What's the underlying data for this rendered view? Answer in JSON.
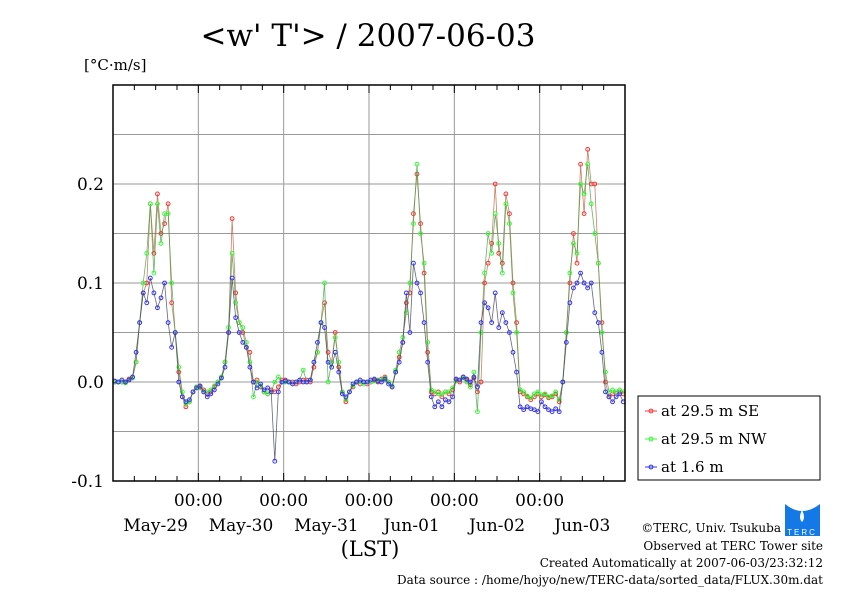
{
  "chart_data": {
    "type": "line",
    "title": "<w' T'> / 2007-06-03",
    "ylabel": "[°C·m/s]",
    "xlabel": "(LST)",
    "ylim": [
      -0.1,
      0.3
    ],
    "xlim_hours": [
      0,
      144
    ],
    "x_unit": "hours since May-29 00:00 LST",
    "yticks": [
      {
        "v": -0.1,
        "label": "-0.1"
      },
      {
        "v": 0.0,
        "label": "0.0"
      },
      {
        "v": 0.1,
        "label": "0.1"
      },
      {
        "v": 0.2,
        "label": "0.2"
      }
    ],
    "ygrid_step": 0.05,
    "xgrid_hours": [
      24,
      48,
      72,
      96,
      120
    ],
    "xtick_minor_hours": 6,
    "time_labels": [
      {
        "h": 24,
        "label": "00:00"
      },
      {
        "h": 48,
        "label": "00:00"
      },
      {
        "h": 72,
        "label": "00:00"
      },
      {
        "h": 96,
        "label": "00:00"
      },
      {
        "h": 120,
        "label": "00:00"
      }
    ],
    "date_labels": [
      {
        "h": 12,
        "label": "May-29"
      },
      {
        "h": 36,
        "label": "May-30"
      },
      {
        "h": 60,
        "label": "May-31"
      },
      {
        "h": 84,
        "label": "Jun-01"
      },
      {
        "h": 108,
        "label": "Jun-02"
      },
      {
        "h": 132,
        "label": "Jun-03"
      }
    ],
    "grid": true,
    "legend_position": "right-bottom",
    "series": [
      {
        "name": "at 29.5 m SE",
        "color": "#ff3030",
        "line": "#c06040",
        "values": [
          0,
          0,
          0,
          0,
          0.003,
          0.005,
          0.02,
          0.06,
          0.09,
          0.1,
          0.18,
          0.13,
          0.19,
          0.15,
          0.16,
          0.18,
          0.08,
          0.05,
          0.01,
          -0.015,
          -0.025,
          -0.02,
          -0.01,
          -0.005,
          -0.005,
          -0.008,
          -0.012,
          -0.01,
          -0.005,
          0,
          0.005,
          0.02,
          0.05,
          0.165,
          0.09,
          0.06,
          0.05,
          0.035,
          0.03,
          0.0,
          0.002,
          -0.005,
          -0.01,
          -0.012,
          -0.008,
          -0.01,
          -0.005,
          0.002,
          0.002,
          0,
          0,
          -0.002,
          0,
          0.002,
          0.002,
          0,
          0.015,
          0.03,
          0.06,
          0.08,
          0.03,
          0.02,
          0.05,
          0.015,
          -0.01,
          -0.02,
          -0.01,
          -0.005,
          0,
          -0.002,
          0,
          -0.002,
          0,
          0.002,
          0,
          0.003,
          0.005,
          0,
          -0.005,
          0.01,
          0.025,
          0.04,
          0.08,
          0.09,
          0.17,
          0.21,
          0.16,
          0.11,
          0.03,
          -0.01,
          -0.012,
          -0.01,
          -0.015,
          -0.01,
          -0.012,
          -0.008,
          0.002,
          0,
          0.005,
          0.002,
          -0.003,
          0.004,
          -0.01,
          0,
          0.1,
          0.12,
          0.14,
          0.2,
          0.13,
          0.12,
          0.19,
          0.17,
          0.1,
          0.06,
          -0.01,
          -0.012,
          -0.015,
          -0.018,
          -0.015,
          -0.012,
          -0.015,
          -0.013,
          -0.016,
          -0.015,
          -0.012,
          -0.02,
          0,
          0.05,
          0.1,
          0.15,
          0.12,
          0.22,
          0.17,
          0.235,
          0.2,
          0.2,
          0.12,
          0.06,
          0,
          -0.015,
          -0.012,
          -0.01,
          -0.01,
          -0.012
        ]
      },
      {
        "name": "at 29.5 m NW",
        "color": "#30ff30",
        "line": "#40a040",
        "values": [
          0,
          0,
          0,
          -0.001,
          0.002,
          0.004,
          0.02,
          0.06,
          0.1,
          0.13,
          0.18,
          0.11,
          0.18,
          0.14,
          0.17,
          0.17,
          0.1,
          0.05,
          0.015,
          -0.01,
          -0.022,
          -0.02,
          -0.01,
          -0.005,
          -0.006,
          -0.01,
          -0.01,
          -0.008,
          -0.004,
          0,
          0.005,
          0.02,
          0.055,
          0.13,
          0.08,
          0.06,
          0.055,
          0.04,
          0.02,
          -0.015,
          0,
          -0.004,
          -0.01,
          -0.012,
          -0.01,
          0,
          0.005,
          0,
          0,
          0,
          -0.002,
          0,
          0.002,
          0.012,
          0,
          0.002,
          0.02,
          0.03,
          0.06,
          0.1,
          0,
          0.02,
          0.045,
          0.02,
          -0.01,
          -0.018,
          -0.01,
          -0.004,
          0,
          0,
          -0.002,
          0,
          0,
          0.001,
          0.002,
          0.002,
          0.004,
          0,
          -0.004,
          0.012,
          0.03,
          0.045,
          0.07,
          0.1,
          0.16,
          0.22,
          0.15,
          0.12,
          0.04,
          -0.008,
          -0.01,
          -0.012,
          -0.012,
          -0.01,
          -0.01,
          -0.006,
          0.001,
          0.002,
          0.004,
          0,
          -0.005,
          0.01,
          -0.03,
          0.05,
          0.11,
          0.15,
          0.13,
          0.17,
          0.14,
          0.11,
          0.18,
          0.16,
          0.09,
          0.05,
          -0.008,
          -0.01,
          -0.014,
          -0.016,
          -0.012,
          -0.01,
          -0.013,
          -0.012,
          -0.015,
          -0.014,
          -0.01,
          -0.018,
          0,
          0.05,
          0.11,
          0.14,
          0.13,
          0.2,
          0.19,
          0.22,
          0.18,
          0.15,
          0.12,
          0.05,
          0.01,
          -0.01,
          -0.008,
          -0.01,
          -0.008,
          -0.01
        ]
      },
      {
        "name": "at 1.6 m",
        "color": "#3030ff",
        "line": "#404060",
        "values": [
          0.001,
          0,
          0.002,
          0,
          0.002,
          0.005,
          0.03,
          0.06,
          0.09,
          0.08,
          0.105,
          0.09,
          0.075,
          0.085,
          0.1,
          0.06,
          0.035,
          0.05,
          0,
          -0.015,
          -0.02,
          -0.018,
          -0.01,
          -0.006,
          -0.004,
          -0.01,
          -0.015,
          -0.012,
          -0.008,
          -0.002,
          0.004,
          0.015,
          0.05,
          0.105,
          0.065,
          0.05,
          0.04,
          0.035,
          0.015,
          0,
          -0.006,
          -0.002,
          -0.008,
          -0.006,
          -0.01,
          -0.08,
          -0.01,
          0,
          0.001,
          0,
          -0.002,
          0,
          0.002,
          0,
          0,
          0.002,
          0.02,
          0.04,
          0.06,
          0.055,
          0.02,
          0.015,
          0.03,
          0.01,
          -0.012,
          -0.015,
          -0.01,
          -0.002,
          0,
          0.002,
          0,
          0,
          0.002,
          0.003,
          0.001,
          0,
          0.003,
          -0.002,
          -0.005,
          0.01,
          0.02,
          0.04,
          0.09,
          0.05,
          0.12,
          0.1,
          0.09,
          0.06,
          0.02,
          -0.015,
          -0.025,
          -0.02,
          -0.025,
          -0.018,
          -0.02,
          -0.015,
          0.003,
          0.002,
          0.005,
          0.003,
          0,
          0.005,
          -0.005,
          0.06,
          0.08,
          0.075,
          0.06,
          0.09,
          0.055,
          0.07,
          0.06,
          0.05,
          0.03,
          0.01,
          -0.025,
          -0.028,
          -0.025,
          -0.027,
          -0.028,
          -0.03,
          -0.02,
          -0.025,
          -0.028,
          -0.03,
          -0.027,
          -0.03,
          0,
          0.04,
          0.08,
          0.095,
          0.1,
          0.11,
          0.1,
          0.095,
          0.1,
          0.07,
          0.06,
          0.03,
          -0.01,
          -0.015,
          -0.02,
          -0.015,
          -0.012,
          -0.02
        ]
      }
    ]
  },
  "footer": {
    "copyright": "©TERC, Univ. Tsukuba",
    "observed": "Observed at TERC Tower site",
    "created": "Created Automatically at 2007-06-03/23:32:12",
    "source": "Data source : /home/hojyo/new/TERC-data/sorted_data/FLUX.30m.dat",
    "logo_text": "TERC"
  }
}
